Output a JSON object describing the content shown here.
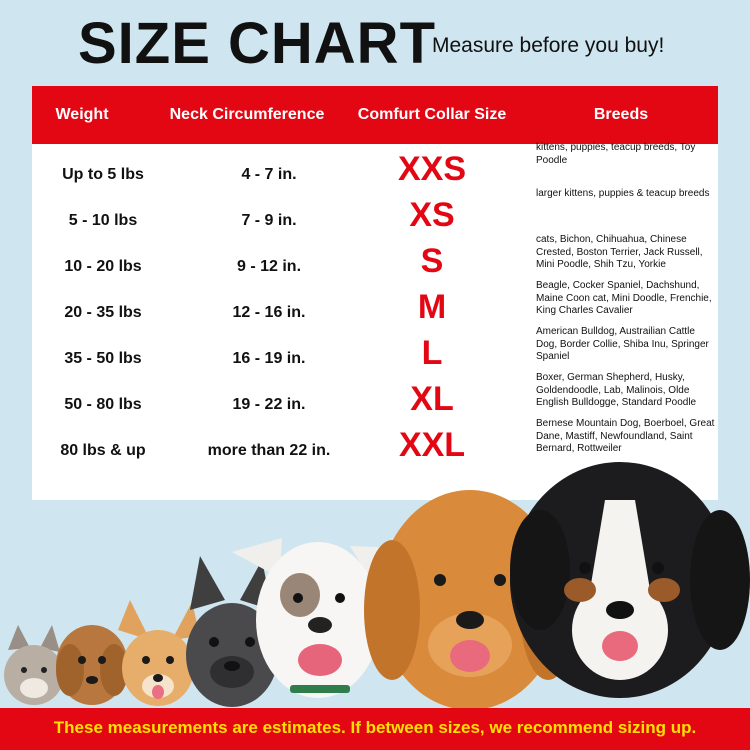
{
  "title": "SIZE  CHART",
  "subtitle": "Measure before you buy!",
  "headers": {
    "weight": "Weight",
    "neck": "Neck Circumference",
    "size": "Comfurt Collar Size",
    "breeds": "Breeds"
  },
  "rows": [
    {
      "weight": "Up to 5 lbs",
      "neck": "4 - 7 in.",
      "size": "XXS",
      "breeds": "kittens, puppies, teacup breeds, Toy Poodle"
    },
    {
      "weight": "5 - 10 lbs",
      "neck": "7 - 9 in.",
      "size": "XS",
      "breeds": "larger kittens, puppies & teacup breeds"
    },
    {
      "weight": "10 - 20 lbs",
      "neck": "9 - 12 in.",
      "size": "S",
      "breeds": "cats, Bichon, Chihuahua, Chinese Crested, Boston Terrier, Jack Russell, Mini Poodle, Shih Tzu, Yorkie"
    },
    {
      "weight": "20 - 35 lbs",
      "neck": "12 - 16 in.",
      "size": "M",
      "breeds": "Beagle, Cocker Spaniel, Dachshund, Maine Coon cat, Mini Doodle, Frenchie, King Charles Cavalier"
    },
    {
      "weight": "35 - 50 lbs",
      "neck": "16 - 19 in.",
      "size": "L",
      "breeds": "American Bulldog, Austrailian Cattle Dog, Border Collie, Shiba Inu, Springer Spaniel"
    },
    {
      "weight": "50 - 80 lbs",
      "neck": "19 - 22 in.",
      "size": "XL",
      "breeds": "Boxer, German Shepherd, Husky, Goldendoodle, Lab, Malinois, Olde English Bulldogge, Standard Poodle"
    },
    {
      "weight": "80 lbs & up",
      "neck": "more than 22 in.",
      "size": "XXL",
      "breeds": "Bernese Mountain Dog, Boerboel, Great Dane, Mastiff, Newfoundland, Saint Bernard, Rottweiler"
    }
  ],
  "footer": "These measurements are estimates. If between sizes, we recommend sizing up.",
  "colors": {
    "accent": "#e30613",
    "footer_text": "#ffe000",
    "background": "#cfe6f0"
  }
}
